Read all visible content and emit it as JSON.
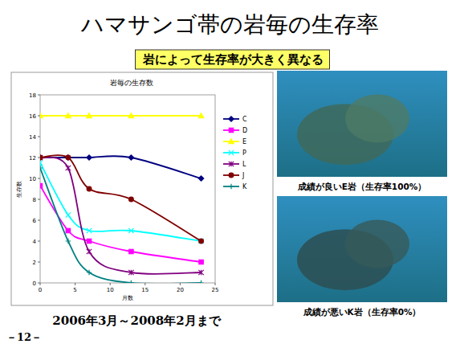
{
  "title": "ハマサンゴ帯の岩毎の生存率",
  "subtitle": "岩によって生存率が大きく異なる",
  "photos": [
    {
      "caption": "成績が良いE岩（生存率100%）"
    },
    {
      "caption": "成績が悪いK岩（生存率0%）"
    }
  ],
  "footer": {
    "period": "2006年3月～2008年2月まで",
    "page": "－12－"
  },
  "chart_data": {
    "type": "line",
    "title": "岩毎の生存数",
    "x_label": "月数",
    "y_label": "生存数",
    "x": [
      0,
      4,
      7,
      13,
      23
    ],
    "series": [
      {
        "name": "C",
        "color": "#000080",
        "marker": "diamond",
        "values": [
          12,
          12,
          12,
          12,
          10
        ]
      },
      {
        "name": "D",
        "color": "#ff00ff",
        "marker": "square",
        "values": [
          9.3,
          5,
          4,
          3,
          2
        ]
      },
      {
        "name": "E",
        "color": "#ffff00",
        "marker": "triangle",
        "values": [
          16,
          16,
          16,
          16,
          16
        ]
      },
      {
        "name": "P",
        "color": "#00ffff",
        "marker": "x",
        "values": [
          11.5,
          6.5,
          5,
          5,
          4
        ]
      },
      {
        "name": "L",
        "color": "#800080",
        "marker": "star",
        "values": [
          12,
          11,
          3,
          1,
          1
        ]
      },
      {
        "name": "J",
        "color": "#800000",
        "marker": "circle",
        "values": [
          12,
          12,
          9,
          8,
          4
        ]
      },
      {
        "name": "K",
        "color": "#008080",
        "marker": "plus",
        "values": [
          11,
          4,
          1,
          0,
          0
        ]
      }
    ],
    "xlim": [
      0,
      25
    ],
    "ylim": [
      0,
      18
    ],
    "xticks": [
      0,
      5,
      10,
      15,
      20,
      25
    ],
    "yticks": [
      0,
      2,
      4,
      6,
      8,
      10,
      12,
      14,
      16,
      18
    ],
    "grid": false,
    "legend": "right",
    "line_style": "smooth"
  }
}
